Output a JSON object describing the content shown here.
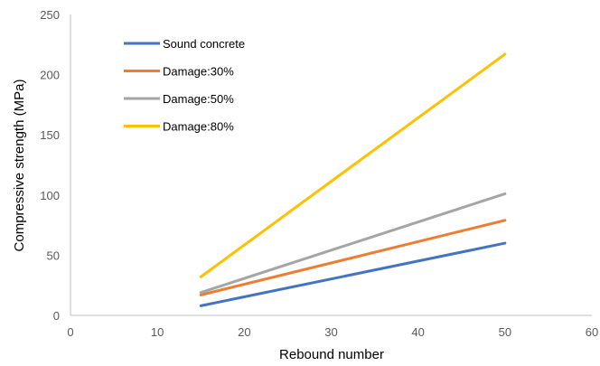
{
  "chart_data": {
    "type": "line",
    "title": "",
    "xlabel": "Rebound number",
    "ylabel": "Compressive strength (MPa)",
    "xlim": [
      0,
      60
    ],
    "ylim": [
      0,
      250
    ],
    "x_ticks": [
      0,
      10,
      20,
      30,
      40,
      50,
      60
    ],
    "y_ticks": [
      0,
      50,
      100,
      150,
      200,
      250
    ],
    "grid": false,
    "legend_position": "top-left",
    "series": [
      {
        "name": "Sound concrete",
        "color": "#4472C4",
        "x": [
          15,
          50
        ],
        "y": [
          8,
          60
        ]
      },
      {
        "name": "Damage:30%",
        "color": "#ED7D31",
        "x": [
          15,
          50
        ],
        "y": [
          17,
          79
        ]
      },
      {
        "name": "Damage:50%",
        "color": "#A5A5A5",
        "x": [
          15,
          50
        ],
        "y": [
          19,
          101
        ]
      },
      {
        "name": "Damage:80%",
        "color": "#FFC000",
        "x": [
          15,
          50
        ],
        "y": [
          32,
          217
        ]
      }
    ]
  }
}
